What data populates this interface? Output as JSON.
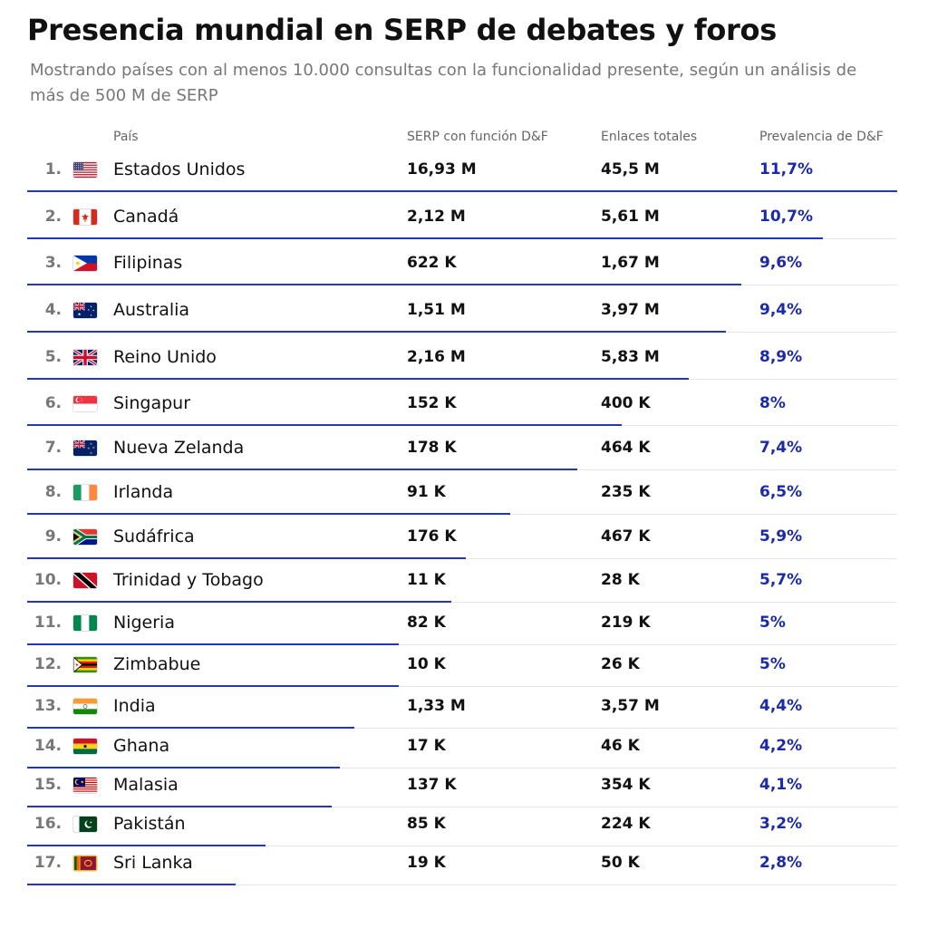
{
  "title": "Presencia mundial en SERP de debates y foros",
  "subtitle": "Mostrando países con al menos 10.000 consultas con la funcionalidad presente, según un análisis de más de 500 M de SERP",
  "colors": {
    "accent": "#1a2aa8",
    "bar": "#2338b8"
  },
  "chart_data": {
    "type": "table",
    "columns": [
      "País",
      "SERP con función D&F",
      "Enlaces totales",
      "Prevalencia de D&F"
    ],
    "max_prevalence": 11.7,
    "rows": [
      {
        "rank": "1.",
        "flag": "us",
        "country": "Estados Unidos",
        "serp": "16,93 M",
        "links": "45,5 M",
        "prevalence": "11,7%",
        "value": 11.7
      },
      {
        "rank": "2.",
        "flag": "ca",
        "country": "Canadá",
        "serp": "2,12 M",
        "links": "5,61 M",
        "prevalence": "10,7%",
        "value": 10.7
      },
      {
        "rank": "3.",
        "flag": "ph",
        "country": "Filipinas",
        "serp": "622 K",
        "links": "1,67 M",
        "prevalence": "9,6%",
        "value": 9.6
      },
      {
        "rank": "4.",
        "flag": "au",
        "country": "Australia",
        "serp": "1,51 M",
        "links": "3,97 M",
        "prevalence": "9,4%",
        "value": 9.4
      },
      {
        "rank": "5.",
        "flag": "gb",
        "country": "Reino Unido",
        "serp": "2,16 M",
        "links": "5,83 M",
        "prevalence": "8,9%",
        "value": 8.9
      },
      {
        "rank": "6.",
        "flag": "sg",
        "country": "Singapur",
        "serp": "152 K",
        "links": "400 K",
        "prevalence": "8%",
        "value": 8.0
      },
      {
        "rank": "7.",
        "flag": "nz",
        "country": "Nueva Zelanda",
        "serp": "178 K",
        "links": "464 K",
        "prevalence": "7,4%",
        "value": 7.4
      },
      {
        "rank": "8.",
        "flag": "ie",
        "country": "Irlanda",
        "serp": "91 K",
        "links": "235 K",
        "prevalence": "6,5%",
        "value": 6.5
      },
      {
        "rank": "9.",
        "flag": "za",
        "country": "Sudáfrica",
        "serp": "176 K",
        "links": "467 K",
        "prevalence": "5,9%",
        "value": 5.9
      },
      {
        "rank": "10.",
        "flag": "tt",
        "country": "Trinidad y Tobago",
        "serp": "11 K",
        "links": "28 K",
        "prevalence": "5,7%",
        "value": 5.7
      },
      {
        "rank": "11.",
        "flag": "ng",
        "country": "Nigeria",
        "serp": "82 K",
        "links": "219 K",
        "prevalence": "5%",
        "value": 5.0
      },
      {
        "rank": "12.",
        "flag": "zw",
        "country": "Zimbabue",
        "serp": "10 K",
        "links": "26 K",
        "prevalence": "5%",
        "value": 5.0
      },
      {
        "rank": "13.",
        "flag": "in",
        "country": "India",
        "serp": "1,33 M",
        "links": "3,57 M",
        "prevalence": "4,4%",
        "value": 4.4
      },
      {
        "rank": "14.",
        "flag": "gh",
        "country": "Ghana",
        "serp": "17 K",
        "links": "46 K",
        "prevalence": "4,2%",
        "value": 4.2
      },
      {
        "rank": "15.",
        "flag": "my",
        "country": "Malasia",
        "serp": "137 K",
        "links": "354 K",
        "prevalence": "4,1%",
        "value": 4.1
      },
      {
        "rank": "16.",
        "flag": "pk",
        "country": "Pakistán",
        "serp": "85 K",
        "links": "224 K",
        "prevalence": "3,2%",
        "value": 3.2
      },
      {
        "rank": "17.",
        "flag": "lk",
        "country": "Sri Lanka",
        "serp": "19 K",
        "links": "50 K",
        "prevalence": "2,8%",
        "value": 2.8
      }
    ]
  }
}
